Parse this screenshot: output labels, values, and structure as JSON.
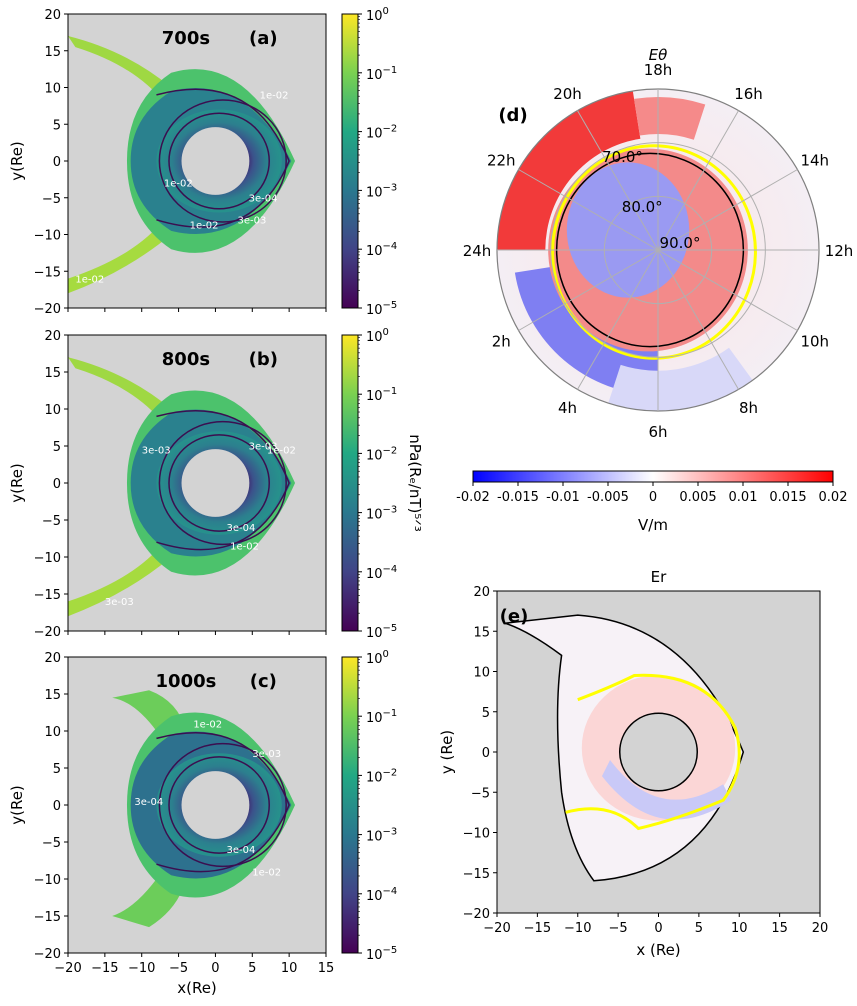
{
  "chart_data": [
    {
      "id": "a",
      "type": "heatmap",
      "panel_label": "(a)",
      "time_label": "700s",
      "xlabel": "",
      "ylabel": "y(Re)",
      "xlim": [
        -20,
        15
      ],
      "ylim": [
        -20,
        20
      ],
      "xticks": [
        -20,
        -15,
        -10,
        -5,
        0,
        5,
        10,
        15
      ],
      "xtick_labels_visible": false,
      "yticks": [
        -20,
        -15,
        -10,
        -5,
        0,
        5,
        10,
        15,
        20
      ],
      "background": "#d3d3d3",
      "colormap": "viridis",
      "colorbar": {
        "scale": "log",
        "range": [
          1e-05,
          1
        ],
        "tick_labels": [
          "10^-5",
          "10^-4",
          "10^-3",
          "10^-2",
          "10^-1",
          "10^0"
        ]
      },
      "contour_labels": [
        "1e-02",
        "1e-02",
        "1e-02",
        "3e-04",
        "3e-03",
        "1e-02"
      ],
      "inner_boundary_radius_re": 4.6,
      "outer_edge_x_re": 10.5
    },
    {
      "id": "b",
      "type": "heatmap",
      "panel_label": "(b)",
      "time_label": "800s",
      "xlabel": "",
      "ylabel": "y(Re)",
      "xlim": [
        -20,
        15
      ],
      "ylim": [
        -20,
        20
      ],
      "xticks": [
        -20,
        -15,
        -10,
        -5,
        0,
        5,
        10,
        15
      ],
      "xtick_labels_visible": false,
      "yticks": [
        -20,
        -15,
        -10,
        -5,
        0,
        5,
        10,
        15,
        20
      ],
      "background": "#d3d3d3",
      "colormap": "viridis",
      "colorbar": {
        "scale": "log",
        "range": [
          1e-05,
          1
        ],
        "tick_labels": [
          "10^-5",
          "10^-4",
          "10^-3",
          "10^-2",
          "10^-1",
          "10^0"
        ],
        "label": "nPa(R_E/nT)^(5/3)"
      },
      "contour_labels": [
        "3e-03",
        "1e-02",
        "3e-03",
        "3e-04",
        "1e-02",
        "3e-03"
      ],
      "inner_boundary_radius_re": 4.6,
      "outer_edge_x_re": 10.5
    },
    {
      "id": "c",
      "type": "heatmap",
      "panel_label": "(c)",
      "time_label": "1000s",
      "xlabel": "x(Re)",
      "ylabel": "y(Re)",
      "xlim": [
        -20,
        15
      ],
      "ylim": [
        -20,
        20
      ],
      "xticks": [
        -20,
        -15,
        -10,
        -5,
        0,
        5,
        10,
        15
      ],
      "xtick_labels_visible": true,
      "yticks": [
        -20,
        -15,
        -10,
        -5,
        0,
        5,
        10,
        15,
        20
      ],
      "background": "#d3d3d3",
      "colormap": "viridis",
      "colorbar": {
        "scale": "log",
        "range": [
          1e-05,
          1
        ],
        "tick_labels": [
          "10^-5",
          "10^-4",
          "10^-3",
          "10^-2",
          "10^-1",
          "10^0"
        ]
      },
      "contour_labels": [
        "1e-02",
        "3e-03",
        "3e-04",
        "3e-04",
        "1e-02"
      ],
      "inner_boundary_radius_re": 4.6,
      "outer_edge_x_re": 10.5
    },
    {
      "id": "d",
      "type": "heatmap",
      "projection": "polar",
      "panel_label": "(d)",
      "title": "E_θ",
      "mlt_labels": [
        "18h",
        "16h",
        "14h",
        "12h",
        "10h",
        "8h",
        "6h",
        "4h",
        "2h",
        "24h",
        "22h",
        "20h"
      ],
      "mlt_values": [
        18,
        16,
        14,
        12,
        10,
        8,
        6,
        4,
        2,
        24,
        22,
        20
      ],
      "latitude_labels": [
        "70.0°",
        "80.0°",
        "90.0°"
      ],
      "latitude_values": [
        70,
        80,
        90
      ],
      "latitude_min": 60,
      "colormap": "bwr",
      "colorbar": {
        "orientation": "horizontal",
        "range": [
          -0.02,
          0.02
        ],
        "tick_labels": [
          "-0.02",
          "-0.015",
          "-0.01",
          "-0.005",
          "0",
          "0.005",
          "0.01",
          "0.015",
          "0.02"
        ],
        "label": "V/m"
      }
    },
    {
      "id": "e",
      "type": "heatmap",
      "panel_label": "(e)",
      "title": "Er",
      "xlabel": "x (Re)",
      "ylabel": "y (Re)",
      "xlim": [
        -20,
        20
      ],
      "ylim": [
        -20,
        20
      ],
      "xticks": [
        -20,
        -15,
        -10,
        -5,
        0,
        5,
        10,
        15,
        20
      ],
      "yticks": [
        -20,
        -15,
        -10,
        -5,
        0,
        5,
        10,
        15,
        20
      ],
      "background": "#d3d3d3",
      "colormap": "bwr",
      "inner_boundary_radius_re": 4.8,
      "boundary_curve_color": "#ffff00"
    }
  ],
  "colors": {
    "viridis_stops": [
      "#440154",
      "#414487",
      "#2a788e",
      "#22a884",
      "#7ad151",
      "#fde725"
    ],
    "bwr_stops": [
      "#0000ff",
      "#ffffff",
      "#ff0000"
    ],
    "axes_background": "#d3d3d3",
    "contour": "#3b0f50",
    "boundary_yellow": "#ffff00"
  }
}
